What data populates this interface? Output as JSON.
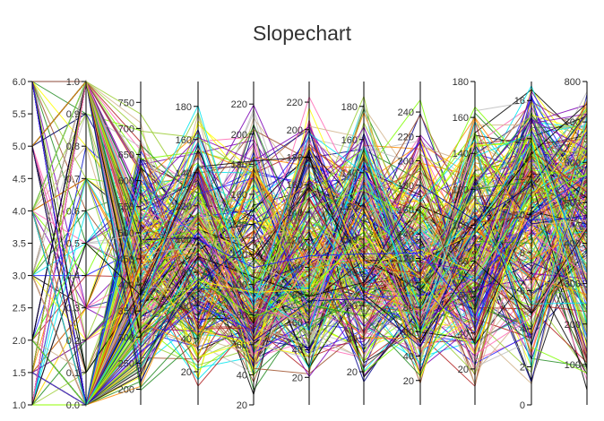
{
  "title": "Slopechart",
  "chart_data": {
    "type": "line",
    "title": "Slopechart",
    "axes": [
      {
        "range": [
          1.0,
          6.0
        ],
        "ticks": [
          "1.0",
          "1.5",
          "2.0",
          "2.5",
          "3.0",
          "3.5",
          "4.0",
          "4.5",
          "5.0",
          "5.5",
          "6.0"
        ]
      },
      {
        "range": [
          0.0,
          1.0
        ],
        "ticks": [
          "0.0",
          "0.1",
          "0.2",
          "0.3",
          "0.4",
          "0.5",
          "0.6",
          "0.7",
          "0.8",
          "0.9",
          "1.0"
        ]
      },
      {
        "range": [
          170,
          790
        ],
        "ticks": [
          "200",
          "250",
          "300",
          "350",
          "400",
          "450",
          "500",
          "550",
          "600",
          "650",
          "700",
          "750"
        ]
      },
      {
        "range": [
          0,
          195
        ],
        "ticks": [
          "20",
          "40",
          "60",
          "80",
          "100",
          "120",
          "140",
          "160",
          "180"
        ]
      },
      {
        "range": [
          20,
          235
        ],
        "ticks": [
          "20",
          "40",
          "60",
          "80",
          "100",
          "120",
          "140",
          "160",
          "180",
          "200",
          "220"
        ]
      },
      {
        "range": [
          0,
          235
        ],
        "ticks": [
          "20",
          "40",
          "60",
          "80",
          "100",
          "120",
          "140",
          "160",
          "180",
          "200",
          "220"
        ]
      },
      {
        "range": [
          0,
          195
        ],
        "ticks": [
          "20",
          "40",
          "60",
          "80",
          "100",
          "120",
          "140",
          "160",
          "180"
        ]
      },
      {
        "range": [
          0,
          265
        ],
        "ticks": [
          "20",
          "40",
          "60",
          "80",
          "100",
          "120",
          "140",
          "160",
          "180",
          "200",
          "220",
          "240"
        ]
      },
      {
        "range": [
          0,
          180
        ],
        "ticks": [
          "20",
          "40",
          "60",
          "80",
          "100",
          "120",
          "140",
          "160",
          "180"
        ]
      },
      {
        "range": [
          0,
          17
        ],
        "ticks": [
          "0",
          "2",
          "4",
          "6",
          "8",
          "10",
          "12",
          "14",
          "16"
        ]
      },
      {
        "range": [
          0,
          800
        ],
        "ticks": [
          "100",
          "200",
          "300",
          "400",
          "500",
          "600",
          "700",
          "800"
        ]
      }
    ],
    "series_colors": [
      "#ffff00",
      "#1f1fff",
      "#000000",
      "#7fff00",
      "#00e5ee",
      "#a0522d",
      "#bebebe",
      "#7b00b4",
      "#d2b48c",
      "#ff8c00",
      "#ff69b4",
      "#228b22",
      "#b22222",
      "#00008b",
      "#9acd32"
    ],
    "line_count": 320,
    "grid": false,
    "legend": "none"
  }
}
